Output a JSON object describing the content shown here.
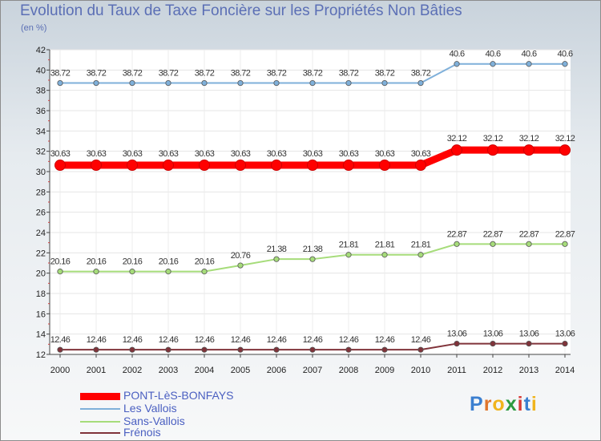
{
  "title": "Evolution du Taux de Taxe Foncière sur les Propriétés Non Bâties",
  "unit": "(en %)",
  "logo": {
    "letters": [
      "P",
      "r",
      "o",
      "x",
      "i",
      "t",
      "i"
    ],
    "colors": [
      "#3b7fd0",
      "#e0752c",
      "#f0b41d",
      "#2c9a3f",
      "#d83a36",
      "#3b7fd0",
      "#f0b41d"
    ]
  },
  "chart_data": {
    "type": "line",
    "title": "Evolution du Taux de Taxe Foncière sur les Propriétés Non Bâties",
    "ylabel": "(en %)",
    "xlabel": "",
    "ylim": [
      12,
      42
    ],
    "yticks": [
      12,
      14,
      16,
      18,
      20,
      22,
      24,
      26,
      28,
      30,
      32,
      34,
      36,
      38,
      40,
      42
    ],
    "x": [
      "2000",
      "2001",
      "2002",
      "2003",
      "2004",
      "2005",
      "2006",
      "2007",
      "2008",
      "2009",
      "2010",
      "2011",
      "2012",
      "2013",
      "2014"
    ],
    "series": [
      {
        "name": "PONT-LèS-BONFAYS",
        "color": "#ff0000",
        "values": [
          30.63,
          30.63,
          30.63,
          30.63,
          30.63,
          30.63,
          30.63,
          30.63,
          30.63,
          30.63,
          30.63,
          32.12,
          32.12,
          32.12,
          32.12
        ],
        "labels": [
          "30.63",
          "30.63",
          "30.63",
          "30.63",
          "30.63",
          "30.63",
          "30.63",
          "30.63",
          "30.63",
          "30.63",
          "30.63",
          "32.12",
          "32.12",
          "32.12",
          "32.12"
        ]
      },
      {
        "name": "Les Vallois",
        "color": "#7fb0da",
        "values": [
          38.72,
          38.72,
          38.72,
          38.72,
          38.72,
          38.72,
          38.72,
          38.72,
          38.72,
          38.72,
          38.72,
          40.6,
          40.6,
          40.6,
          40.6
        ],
        "labels": [
          "38.72",
          "38.72",
          "38.72",
          "38.72",
          "38.72",
          "38.72",
          "38.72",
          "38.72",
          "38.72",
          "38.72",
          "38.72",
          "40.6",
          "40.6",
          "40.6",
          "40.6"
        ]
      },
      {
        "name": "Sans-Vallois",
        "color": "#a6dc7a",
        "values": [
          20.16,
          20.16,
          20.16,
          20.16,
          20.16,
          20.76,
          21.38,
          21.38,
          21.81,
          21.81,
          21.81,
          22.87,
          22.87,
          22.87,
          22.87
        ],
        "labels": [
          "20.16",
          "20.16",
          "20.16",
          "20.16",
          "20.16",
          "20.76",
          "21.38",
          "21.38",
          "21.81",
          "21.81",
          "21.81",
          "22.87",
          "22.87",
          "22.87",
          "22.87"
        ]
      },
      {
        "name": "Frénois",
        "color": "#80333a",
        "values": [
          12.46,
          12.46,
          12.46,
          12.46,
          12.46,
          12.46,
          12.46,
          12.46,
          12.46,
          12.46,
          12.46,
          13.06,
          13.06,
          13.06,
          13.06
        ],
        "labels": [
          "12.46",
          "12.46",
          "12.46",
          "12.46",
          "12.46",
          "12.46",
          "12.46",
          "12.46",
          "12.46",
          "12.46",
          "12.46",
          "13.06",
          "13.06",
          "13.06",
          "13.06"
        ]
      }
    ]
  }
}
